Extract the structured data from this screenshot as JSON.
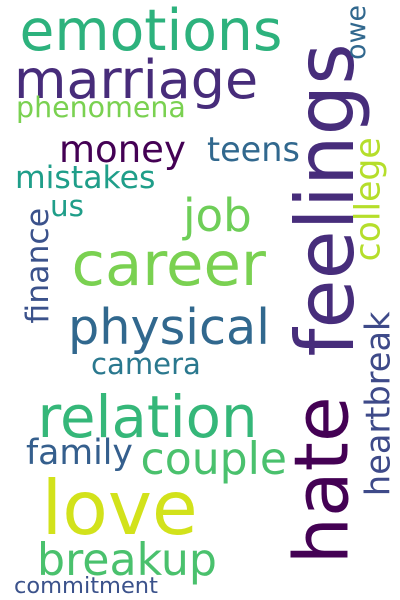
{
  "words": [
    {
      "id": "emotions",
      "text": "emotions",
      "color": "#2db27d",
      "rotated": false
    },
    {
      "id": "marriage",
      "text": "marriage",
      "color": "#472c7a",
      "rotated": false
    },
    {
      "id": "phenomena",
      "text": "phenomena",
      "color": "#7ad151",
      "rotated": false
    },
    {
      "id": "money",
      "text": "money",
      "color": "#440154",
      "rotated": false
    },
    {
      "id": "teens",
      "text": "teens",
      "color": "#31688e",
      "rotated": false
    },
    {
      "id": "mistakes",
      "text": "mistakes",
      "color": "#1f9e89",
      "rotated": false
    },
    {
      "id": "us",
      "text": "us",
      "color": "#1f9e89",
      "rotated": false
    },
    {
      "id": "job",
      "text": "job",
      "color": "#6ece58",
      "rotated": false
    },
    {
      "id": "career",
      "text": "career",
      "color": "#7ad151",
      "rotated": false
    },
    {
      "id": "physical",
      "text": "physical",
      "color": "#31688e",
      "rotated": false
    },
    {
      "id": "camera",
      "text": "camera",
      "color": "#2a788e",
      "rotated": false
    },
    {
      "id": "relation",
      "text": "relation",
      "color": "#35b779",
      "rotated": false
    },
    {
      "id": "family",
      "text": "family",
      "color": "#355f8d",
      "rotated": false
    },
    {
      "id": "couple",
      "text": "couple",
      "color": "#4ac16d",
      "rotated": false
    },
    {
      "id": "love",
      "text": "love",
      "color": "#d2e21b",
      "rotated": false
    },
    {
      "id": "breakup",
      "text": "breakup",
      "color": "#4ac16d",
      "rotated": false
    },
    {
      "id": "commitment",
      "text": "commitment",
      "color": "#3b528b",
      "rotated": false
    },
    {
      "id": "feelings",
      "text": "feelings",
      "color": "#472d7b",
      "rotated": true
    },
    {
      "id": "hate",
      "text": "hate",
      "color": "#440154",
      "rotated": true
    },
    {
      "id": "owe",
      "text": "owe",
      "color": "#31688e",
      "rotated": true
    },
    {
      "id": "college",
      "text": "college",
      "color": "#b5de2b",
      "rotated": true
    },
    {
      "id": "finance",
      "text": "finance",
      "color": "#3b528b",
      "rotated": true
    },
    {
      "id": "heartbreak",
      "text": "heartbreak",
      "color": "#3e4a89",
      "rotated": true
    }
  ]
}
